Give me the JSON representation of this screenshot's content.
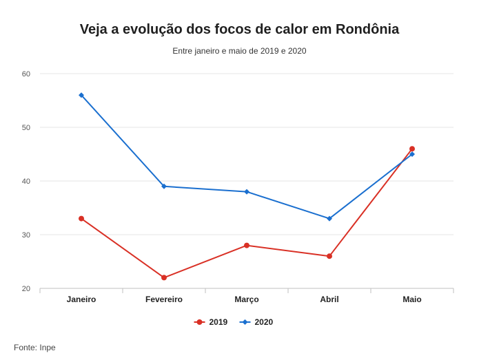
{
  "title": "Veja a evolução dos focos de calor em Rondônia",
  "subtitle": "Entre janeiro e maio de 2019 e 2020",
  "source": "Fonte: Inpe",
  "chart_data": {
    "type": "line",
    "categories": [
      "Janeiro",
      "Fevereiro",
      "Março",
      "Abril",
      "Maio"
    ],
    "ylim": [
      20,
      60
    ],
    "yticks": [
      20,
      30,
      40,
      50,
      60
    ],
    "grid": true,
    "legend_position": "bottom",
    "series": [
      {
        "name": "2019",
        "values": [
          33,
          22,
          28,
          26,
          46
        ],
        "color": "#d93025",
        "marker": "circle"
      },
      {
        "name": "2020",
        "values": [
          56,
          39,
          38,
          33,
          45
        ],
        "color": "#1a6fcf",
        "marker": "diamond"
      }
    ]
  }
}
